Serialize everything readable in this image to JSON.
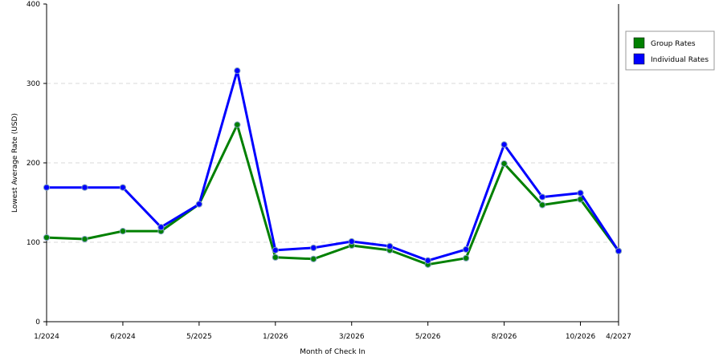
{
  "chart_data": {
    "type": "line",
    "title": "",
    "xlabel": "Month of Check In",
    "ylabel": "Lowest Average Rate (USD)",
    "ylim": [
      0,
      400
    ],
    "yticks": [
      0,
      100,
      200,
      300,
      400
    ],
    "grid": "horizontal dashed",
    "legend_position": "right",
    "x_tick_labels": [
      "1/2024",
      "6/2024",
      "5/2025",
      "1/2026",
      "3/2026",
      "5/2026",
      "8/2026",
      "10/2026",
      "4/2027"
    ],
    "series": [
      {
        "name": "Group Rates",
        "color": "#008000",
        "values": [
          106,
          104,
          114,
          114,
          148,
          248,
          81,
          79,
          96,
          90,
          72,
          80,
          199,
          147,
          154,
          89
        ]
      },
      {
        "name": "Individual Rates",
        "color": "#0000ff",
        "values": [
          169,
          169,
          169,
          119,
          148,
          316,
          90,
          93,
          101,
          95,
          77,
          91,
          223,
          157,
          162,
          89
        ]
      }
    ]
  }
}
